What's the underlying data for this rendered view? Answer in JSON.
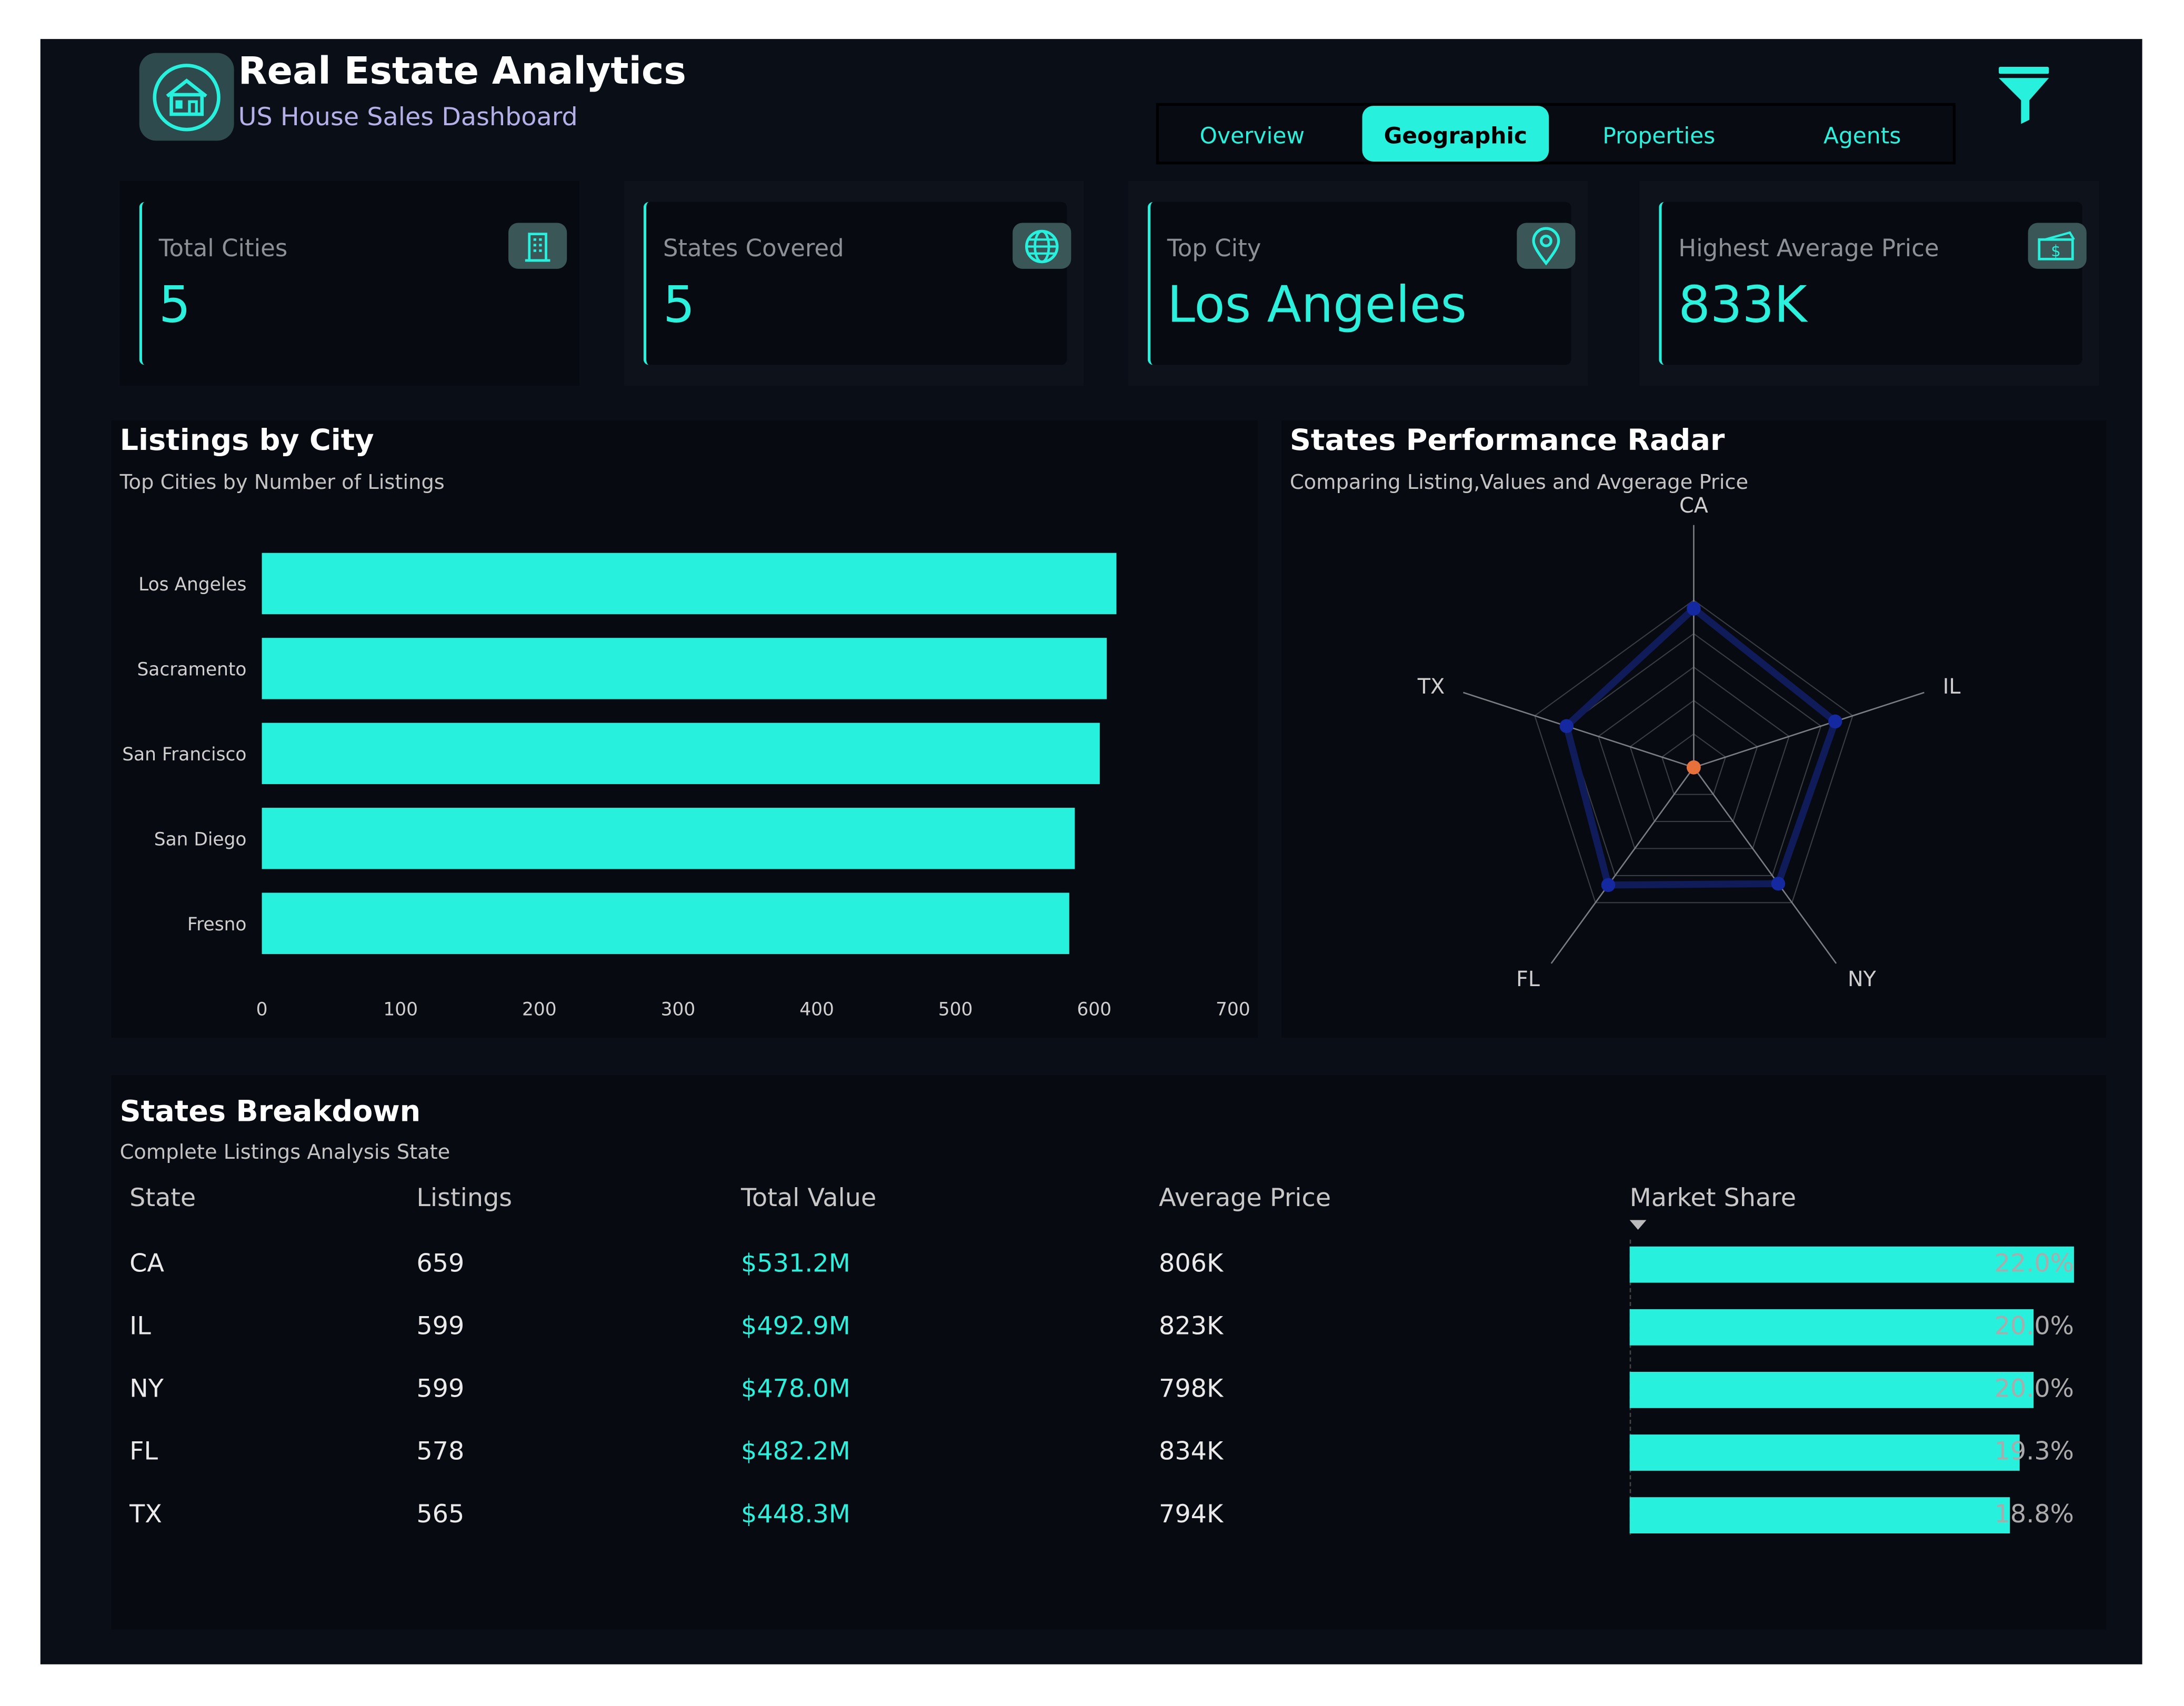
{
  "header": {
    "title": "Real Estate Analytics",
    "subtitle": "US House Sales Dashboard",
    "logo_icon": "house-icon",
    "filter_icon": "filter-icon"
  },
  "tabs": [
    {
      "label": "Overview",
      "active": false
    },
    {
      "label": "Geographic",
      "active": true
    },
    {
      "label": "Properties",
      "active": false
    },
    {
      "label": "Agents",
      "active": false
    }
  ],
  "kpis": [
    {
      "label": "Total Cities",
      "value": "5",
      "icon": "building-icon"
    },
    {
      "label": "States Covered",
      "value": "5",
      "icon": "globe-icon"
    },
    {
      "label": "Top City",
      "value": "Los Angeles",
      "icon": "map-pin-icon"
    },
    {
      "label": "Highest Average Price",
      "value": "833K",
      "icon": "money-icon"
    }
  ],
  "colors": {
    "accent": "#27f0dc",
    "background": "#0a0e17",
    "panel": "#080a12",
    "radar_series": "#1428a0",
    "radar_center": "#e8703a"
  },
  "listings_panel": {
    "title": "Listings by City",
    "subtitle": "Top Cities by Number of Listings"
  },
  "radar_panel": {
    "title": "States Performance Radar",
    "subtitle": "Comparing Listing,Values and Avgerage Price"
  },
  "chart_data": [
    {
      "type": "bar",
      "orientation": "horizontal",
      "categories": [
        "Los Angeles",
        "Sacramento",
        "San Francisco",
        "San Diego",
        "Fresno"
      ],
      "values": [
        616,
        609,
        604,
        586,
        582
      ],
      "xlim": [
        0,
        700
      ],
      "xticks": [
        "0",
        "100",
        "200",
        "300",
        "400",
        "500",
        "600",
        "700"
      ],
      "grid": false,
      "color": "#27f0dc"
    },
    {
      "type": "radar",
      "axes": [
        "CA",
        "IL",
        "NY",
        "FL",
        "TX"
      ],
      "range": [
        0,
        1
      ],
      "rings": 5,
      "series": [
        {
          "values": [
            0.95,
            0.89,
            0.86,
            0.87,
            0.8
          ],
          "color": "#1428a0"
        },
        {
          "values": [
            0,
            0,
            0,
            0,
            0
          ],
          "color": "#e8703a"
        }
      ]
    }
  ],
  "table": {
    "title": "States Breakdown",
    "subtitle": "Complete Listings Analysis State",
    "columns": [
      "State",
      "Listings",
      "Total Value",
      "Average Price",
      "Market Share"
    ],
    "sort_column": "Market Share",
    "sort_direction": "descending",
    "rows": [
      {
        "state": "CA",
        "listings": "659",
        "total_value": "$531.2M",
        "avg_price": "806K",
        "share_label": "22.0%",
        "share": 22.0
      },
      {
        "state": "IL",
        "listings": "599",
        "total_value": "$492.9M",
        "avg_price": "823K",
        "share_label": "20.0%",
        "share": 20.0
      },
      {
        "state": "NY",
        "listings": "599",
        "total_value": "$478.0M",
        "avg_price": "798K",
        "share_label": "20.0%",
        "share": 20.0
      },
      {
        "state": "FL",
        "listings": "578",
        "total_value": "$482.2M",
        "avg_price": "834K",
        "share_label": "19.3%",
        "share": 19.3
      },
      {
        "state": "TX",
        "listings": "565",
        "total_value": "$448.3M",
        "avg_price": "794K",
        "share_label": "18.8%",
        "share": 18.8
      }
    ]
  }
}
